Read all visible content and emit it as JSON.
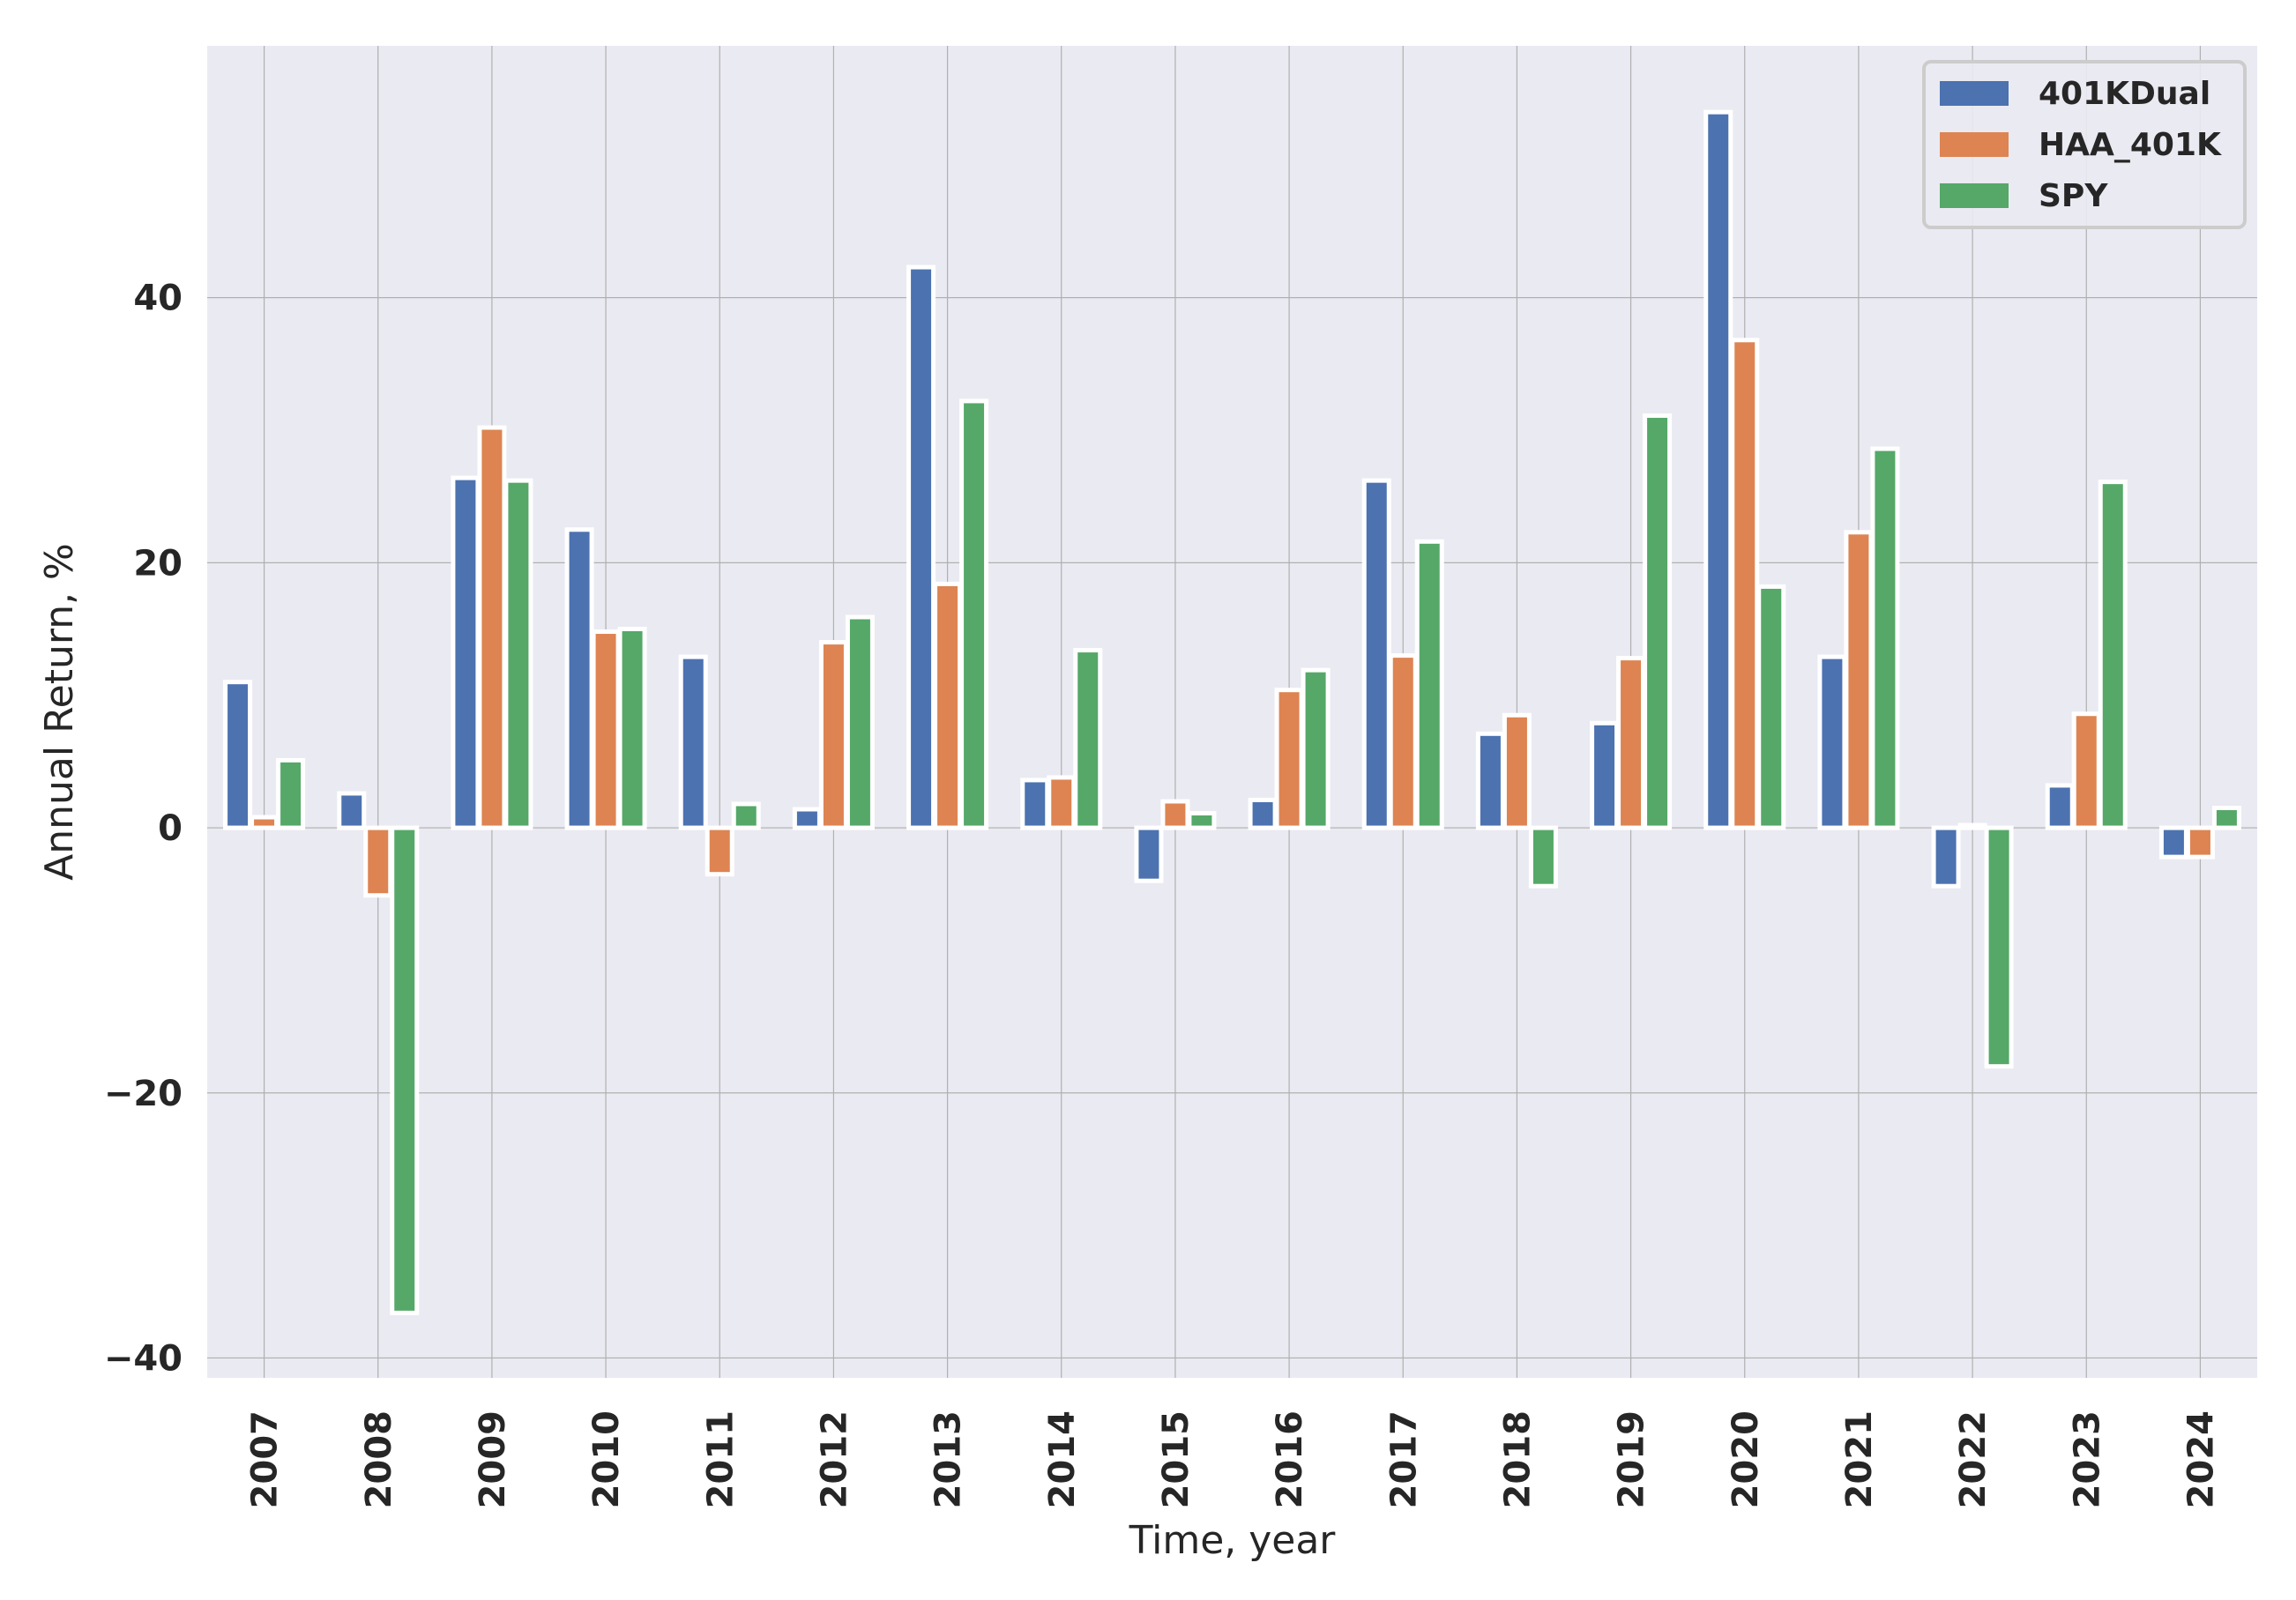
{
  "chart_data": {
    "type": "bar",
    "title": "",
    "xlabel": "Time, year",
    "ylabel": "Annual Return, %",
    "categories": [
      "2007",
      "2008",
      "2009",
      "2010",
      "2011",
      "2012",
      "2013",
      "2014",
      "2015",
      "2016",
      "2017",
      "2018",
      "2019",
      "2020",
      "2021",
      "2022",
      "2023",
      "2024"
    ],
    "series": [
      {
        "name": "401KDual",
        "color": "#4c72b0",
        "values": [
          11.0,
          2.6,
          26.4,
          22.5,
          12.9,
          1.4,
          42.3,
          3.6,
          -4.0,
          2.1,
          26.2,
          7.1,
          7.9,
          54.0,
          12.9,
          -4.4,
          3.2,
          -2.2
        ]
      },
      {
        "name": "HAA_401K",
        "color": "#dd8452",
        "values": [
          0.8,
          -5.1,
          30.2,
          14.8,
          -3.5,
          14.0,
          18.4,
          3.8,
          2.0,
          10.4,
          13.0,
          8.5,
          12.8,
          36.8,
          22.3,
          0.2,
          8.6,
          -2.2
        ]
      },
      {
        "name": "SPY",
        "color": "#55a868",
        "values": [
          5.1,
          -36.6,
          26.2,
          15.0,
          1.8,
          15.9,
          32.2,
          13.4,
          1.1,
          11.9,
          21.6,
          -4.4,
          31.1,
          18.2,
          28.6,
          -18.0,
          26.1,
          1.5
        ]
      }
    ],
    "yticks": [
      -40,
      -20,
      0,
      20,
      40
    ],
    "ytick_labels": [
      "−40",
      "−20",
      "0",
      "20",
      "40"
    ],
    "ylim": [
      -41.5,
      59.0
    ],
    "grid": true,
    "legend_position": "top-right",
    "colors": {
      "background": "#eaeaf2",
      "grid": "#b0b0b0",
      "bar_edge": "#ffffff"
    }
  }
}
